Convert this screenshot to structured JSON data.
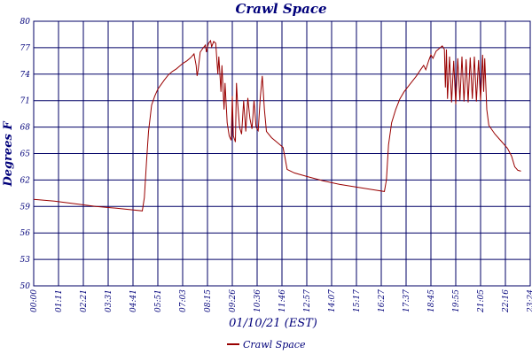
{
  "chart_data": {
    "type": "line",
    "title": "Crawl Space",
    "xlabel": "01/10/21 (EST)",
    "ylabel": "Degrees F",
    "y_tick_labels": [
      "50",
      "53",
      "56",
      "59",
      "62",
      "65",
      "68",
      "71",
      "74",
      "77",
      "80"
    ],
    "x_tick_labels": [
      "00:00",
      "01:11",
      "02:21",
      "03:31",
      "04:41",
      "05:51",
      "07:03",
      "08:15",
      "09:26",
      "10:36",
      "11:46",
      "12:57",
      "14:07",
      "15:17",
      "16:27",
      "17:37",
      "18:45",
      "19:55",
      "21:05",
      "22:16",
      "23:24"
    ],
    "ylim": [
      50,
      80
    ],
    "xlim": [
      0,
      24
    ],
    "grid": true,
    "legend_position": "bottom-center",
    "colors": {
      "line": "#990000",
      "grid": "#000066",
      "text": "#00007a"
    },
    "series": [
      {
        "name": "Crawl Space",
        "points": [
          [
            0.0,
            59.8
          ],
          [
            1.0,
            59.6
          ],
          [
            2.0,
            59.3
          ],
          [
            3.0,
            59.0
          ],
          [
            4.0,
            58.8
          ],
          [
            5.25,
            58.5
          ],
          [
            5.35,
            60.0
          ],
          [
            5.45,
            64.0
          ],
          [
            5.55,
            67.5
          ],
          [
            5.7,
            70.5
          ],
          [
            5.85,
            71.5
          ],
          [
            6.0,
            72.3
          ],
          [
            6.15,
            72.8
          ],
          [
            6.3,
            73.3
          ],
          [
            6.5,
            73.9
          ],
          [
            6.7,
            74.3
          ],
          [
            6.9,
            74.6
          ],
          [
            7.05,
            74.9
          ],
          [
            7.2,
            75.2
          ],
          [
            7.4,
            75.5
          ],
          [
            7.6,
            75.9
          ],
          [
            7.75,
            76.3
          ],
          [
            7.85,
            75.0
          ],
          [
            7.9,
            73.8
          ],
          [
            7.95,
            74.5
          ],
          [
            8.05,
            76.5
          ],
          [
            8.2,
            77.0
          ],
          [
            8.3,
            77.3
          ],
          [
            8.35,
            76.5
          ],
          [
            8.45,
            77.5
          ],
          [
            8.55,
            77.8
          ],
          [
            8.6,
            77.1
          ],
          [
            8.7,
            77.7
          ],
          [
            8.8,
            77.5
          ],
          [
            8.9,
            74.0
          ],
          [
            8.95,
            76.0
          ],
          [
            9.05,
            72.0
          ],
          [
            9.1,
            75.0
          ],
          [
            9.2,
            70.0
          ],
          [
            9.25,
            73.0
          ],
          [
            9.35,
            68.5
          ],
          [
            9.45,
            67.0
          ],
          [
            9.55,
            66.5
          ],
          [
            9.6,
            71.5
          ],
          [
            9.65,
            67.0
          ],
          [
            9.75,
            66.3
          ],
          [
            9.8,
            73.0
          ],
          [
            9.85,
            71.0
          ],
          [
            9.95,
            68.0
          ],
          [
            10.05,
            67.2
          ],
          [
            10.15,
            71.0
          ],
          [
            10.25,
            67.5
          ],
          [
            10.35,
            71.3
          ],
          [
            10.45,
            69.0
          ],
          [
            10.55,
            67.8
          ],
          [
            10.65,
            71.0
          ],
          [
            10.75,
            68.0
          ],
          [
            10.85,
            67.6
          ],
          [
            10.95,
            71.3
          ],
          [
            11.05,
            73.8
          ],
          [
            11.15,
            70.0
          ],
          [
            11.25,
            67.5
          ],
          [
            11.5,
            66.8
          ],
          [
            11.8,
            66.2
          ],
          [
            12.05,
            65.7
          ],
          [
            12.15,
            64.5
          ],
          [
            12.25,
            63.2
          ],
          [
            12.6,
            62.8
          ],
          [
            13.2,
            62.4
          ],
          [
            14.0,
            61.9
          ],
          [
            14.8,
            61.5
          ],
          [
            15.6,
            61.2
          ],
          [
            16.4,
            60.9
          ],
          [
            16.95,
            60.7
          ],
          [
            17.05,
            62.0
          ],
          [
            17.15,
            66.0
          ],
          [
            17.3,
            68.5
          ],
          [
            17.5,
            70.0
          ],
          [
            17.7,
            71.2
          ],
          [
            17.9,
            72.0
          ],
          [
            18.1,
            72.6
          ],
          [
            18.3,
            73.2
          ],
          [
            18.5,
            73.8
          ],
          [
            18.7,
            74.5
          ],
          [
            18.85,
            75.0
          ],
          [
            18.95,
            74.5
          ],
          [
            19.1,
            75.6
          ],
          [
            19.2,
            76.2
          ],
          [
            19.3,
            75.8
          ],
          [
            19.45,
            76.6
          ],
          [
            19.6,
            76.9
          ],
          [
            19.75,
            77.2
          ],
          [
            19.85,
            76.8
          ],
          [
            19.9,
            72.5
          ],
          [
            19.95,
            76.8
          ],
          [
            20.0,
            71.2
          ],
          [
            20.1,
            76.0
          ],
          [
            20.2,
            70.8
          ],
          [
            20.3,
            75.5
          ],
          [
            20.4,
            70.6
          ],
          [
            20.5,
            75.8
          ],
          [
            20.6,
            71.0
          ],
          [
            20.7,
            76.0
          ],
          [
            20.8,
            70.9
          ],
          [
            20.9,
            75.7
          ],
          [
            21.0,
            70.8
          ],
          [
            21.1,
            75.9
          ],
          [
            21.2,
            71.2
          ],
          [
            21.3,
            76.0
          ],
          [
            21.4,
            70.9
          ],
          [
            21.5,
            75.6
          ],
          [
            21.6,
            71.0
          ],
          [
            21.7,
            76.2
          ],
          [
            21.75,
            72.0
          ],
          [
            21.8,
            75.8
          ],
          [
            21.9,
            70.0
          ],
          [
            22.0,
            68.2
          ],
          [
            22.3,
            67.2
          ],
          [
            22.6,
            66.4
          ],
          [
            22.9,
            65.6
          ],
          [
            23.1,
            64.7
          ],
          [
            23.25,
            63.5
          ],
          [
            23.4,
            63.1
          ],
          [
            23.55,
            63.0
          ]
        ]
      }
    ]
  }
}
